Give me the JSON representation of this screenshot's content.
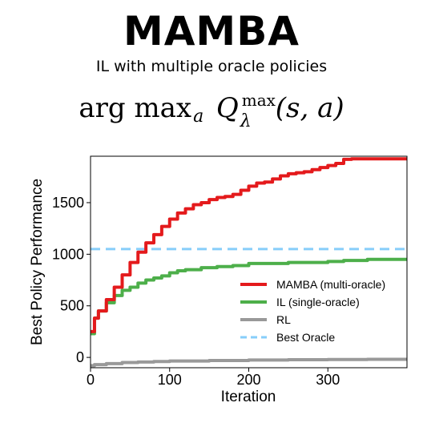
{
  "header": {
    "title": "MAMBA",
    "subtitle": "IL with multiple oracle policies",
    "formula": {
      "op": "arg max",
      "op_sub": "a",
      "q": "Q",
      "q_sup": "max",
      "q_sub": "λ",
      "args": "(s, a)"
    }
  },
  "chart_data": {
    "type": "line",
    "title": "",
    "xlabel": "Iteration",
    "ylabel": "Best Policy Performance",
    "xlim": [
      0,
      400
    ],
    "ylim": [
      -100,
      1950
    ],
    "xticks": [
      0,
      100,
      200,
      300
    ],
    "yticks": [
      0,
      500,
      1000,
      1500
    ],
    "grid": false,
    "legend_position": "center-right",
    "series": [
      {
        "name": "MAMBA (multi-oracle)",
        "color": "#e41a1c",
        "style": "step",
        "x": [
          0,
          5,
          10,
          20,
          30,
          40,
          50,
          60,
          70,
          80,
          90,
          100,
          110,
          120,
          130,
          140,
          150,
          160,
          170,
          180,
          190,
          200,
          210,
          220,
          230,
          240,
          250,
          260,
          270,
          280,
          290,
          300,
          310,
          320,
          330,
          340,
          350,
          360,
          370,
          380,
          390,
          400
        ],
        "y": [
          250,
          380,
          450,
          560,
          680,
          800,
          920,
          1020,
          1110,
          1190,
          1270,
          1340,
          1400,
          1440,
          1480,
          1500,
          1530,
          1550,
          1560,
          1580,
          1620,
          1660,
          1690,
          1700,
          1730,
          1760,
          1780,
          1790,
          1800,
          1820,
          1840,
          1860,
          1880,
          1920,
          1925,
          1925,
          1925,
          1925,
          1925,
          1925,
          1925,
          1925
        ]
      },
      {
        "name": "IL (single-oracle)",
        "color": "#4daf4a",
        "style": "step",
        "x": [
          0,
          5,
          10,
          20,
          30,
          40,
          50,
          60,
          70,
          80,
          90,
          100,
          110,
          120,
          130,
          140,
          160,
          180,
          200,
          250,
          300,
          320,
          350,
          400
        ],
        "y": [
          230,
          380,
          450,
          530,
          600,
          650,
          680,
          720,
          750,
          770,
          790,
          820,
          840,
          850,
          850,
          870,
          880,
          890,
          910,
          920,
          930,
          940,
          950,
          950
        ]
      },
      {
        "name": "RL",
        "color": "#999999",
        "style": "step",
        "x": [
          0,
          5,
          20,
          40,
          60,
          80,
          100,
          150,
          200,
          250,
          300,
          350,
          400
        ],
        "y": [
          -80,
          -70,
          -60,
          -50,
          -45,
          -40,
          -35,
          -30,
          -25,
          -22,
          -20,
          -18,
          -15
        ]
      },
      {
        "name": "Best Oracle",
        "color": "#87cefa",
        "style": "dashed",
        "x": [
          0,
          400
        ],
        "y": [
          1050,
          1050
        ]
      }
    ]
  }
}
